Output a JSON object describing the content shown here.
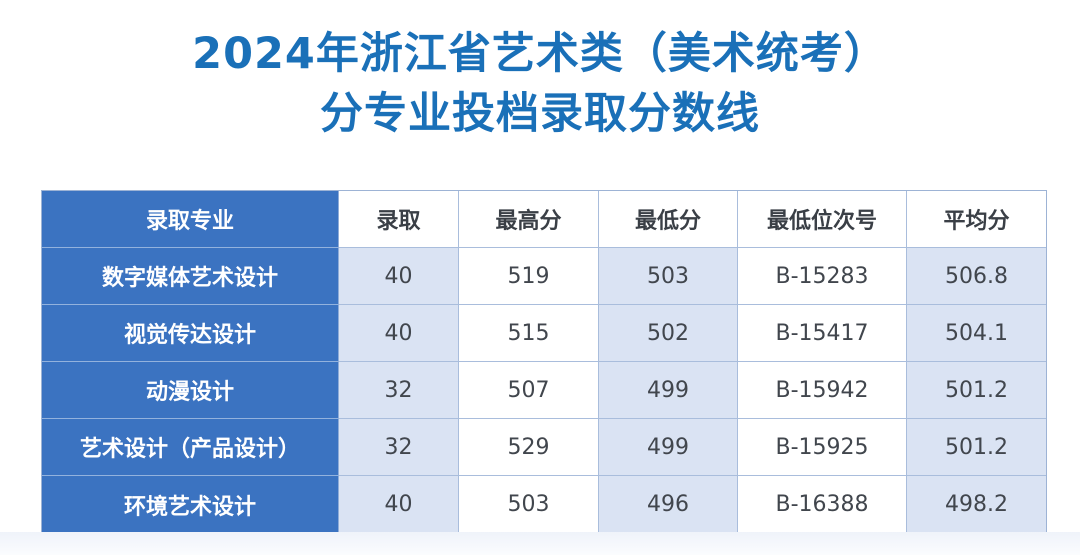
{
  "page": {
    "title_line1": "2024年浙江省艺术类（美术统考）",
    "title_line2": "分专业投档录取分数线",
    "title_color": "#1A70B8"
  },
  "table": {
    "header_bg_color": "#3B73C1",
    "shade_bg_color": "#DAE3F3",
    "border_color": "#A9BDDC",
    "columns": [
      {
        "key": "major",
        "label": "录取专业"
      },
      {
        "key": "count",
        "label": "录取"
      },
      {
        "key": "max",
        "label": "最高分"
      },
      {
        "key": "min",
        "label": "最低分"
      },
      {
        "key": "rank",
        "label": "最低位次号"
      },
      {
        "key": "avg",
        "label": "平均分"
      }
    ],
    "rows": [
      {
        "major": "数字媒体艺术设计",
        "count": "40",
        "max": "519",
        "min": "503",
        "rank": "B-15283",
        "avg": "506.8"
      },
      {
        "major": "视觉传达设计",
        "count": "40",
        "max": "515",
        "min": "502",
        "rank": "B-15417",
        "avg": "504.1"
      },
      {
        "major": "动漫设计",
        "count": "32",
        "max": "507",
        "min": "499",
        "rank": "B-15942",
        "avg": "501.2"
      },
      {
        "major": "艺术设计（产品设计）",
        "count": "32",
        "max": "529",
        "min": "499",
        "rank": "B-15925",
        "avg": "501.2"
      },
      {
        "major": "环境艺术设计",
        "count": "40",
        "max": "503",
        "min": "496",
        "rank": "B-16388",
        "avg": "498.2"
      }
    ]
  }
}
